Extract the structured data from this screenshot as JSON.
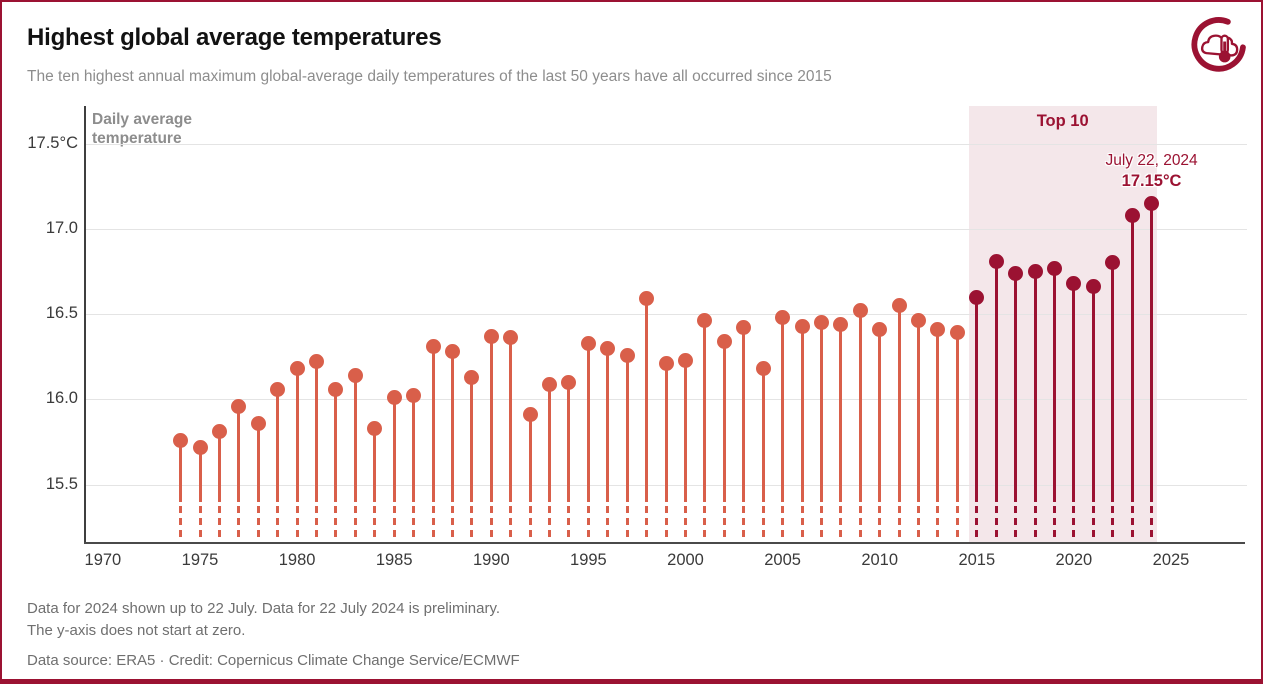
{
  "header": {
    "title": "Highest global average temperatures",
    "subtitle": "The ten highest annual maximum global-average daily temperatures of the last 50 years have all occurred since 2015"
  },
  "logo": {
    "name": "climate-pulse-logo",
    "color": "#9b1232"
  },
  "chart_data": {
    "type": "lollipop",
    "title": "Highest global average temperatures",
    "ylabel": "Daily average temperature",
    "y_unit": "°C",
    "ylim": [
      15.5,
      17.5
    ],
    "y_axis_starts_at_zero": false,
    "grid": true,
    "legend": "none",
    "y_ticks": [
      {
        "value": 17.5,
        "label": "17.5°C"
      },
      {
        "value": 17.0,
        "label": "17.0"
      },
      {
        "value": 16.5,
        "label": "16.5"
      },
      {
        "value": 16.0,
        "label": "16.0"
      },
      {
        "value": 15.5,
        "label": "15.5"
      }
    ],
    "x_ticks": [
      "1970",
      "1975",
      "1980",
      "1985",
      "1990",
      "1995",
      "2000",
      "2005",
      "2010",
      "2015",
      "2020",
      "2025"
    ],
    "top10_band": {
      "label": "Top 10",
      "from_year": 2015,
      "to_year": 2024,
      "fill": "#f4e7ea"
    },
    "annotation": {
      "date": "July 22, 2024",
      "value_label": "17.15°C",
      "year": 2024
    },
    "colors": {
      "default": "#d95f4a",
      "top10": "#9b1232"
    },
    "points": [
      {
        "year": 1974,
        "value": 15.76,
        "top10": false
      },
      {
        "year": 1975,
        "value": 15.72,
        "top10": false
      },
      {
        "year": 1976,
        "value": 15.81,
        "top10": false
      },
      {
        "year": 1977,
        "value": 15.96,
        "top10": false
      },
      {
        "year": 1978,
        "value": 15.86,
        "top10": false
      },
      {
        "year": 1979,
        "value": 16.06,
        "top10": false
      },
      {
        "year": 1980,
        "value": 16.18,
        "top10": false
      },
      {
        "year": 1981,
        "value": 16.22,
        "top10": false
      },
      {
        "year": 1982,
        "value": 16.06,
        "top10": false
      },
      {
        "year": 1983,
        "value": 16.14,
        "top10": false
      },
      {
        "year": 1984,
        "value": 15.83,
        "top10": false
      },
      {
        "year": 1985,
        "value": 16.01,
        "top10": false
      },
      {
        "year": 1986,
        "value": 16.02,
        "top10": false
      },
      {
        "year": 1987,
        "value": 16.31,
        "top10": false
      },
      {
        "year": 1988,
        "value": 16.28,
        "top10": false
      },
      {
        "year": 1989,
        "value": 16.13,
        "top10": false
      },
      {
        "year": 1990,
        "value": 16.37,
        "top10": false
      },
      {
        "year": 1991,
        "value": 16.36,
        "top10": false
      },
      {
        "year": 1992,
        "value": 15.91,
        "top10": false
      },
      {
        "year": 1993,
        "value": 16.09,
        "top10": false
      },
      {
        "year": 1994,
        "value": 16.1,
        "top10": false
      },
      {
        "year": 1995,
        "value": 16.33,
        "top10": false
      },
      {
        "year": 1996,
        "value": 16.3,
        "top10": false
      },
      {
        "year": 1997,
        "value": 16.26,
        "top10": false
      },
      {
        "year": 1998,
        "value": 16.59,
        "top10": false
      },
      {
        "year": 1999,
        "value": 16.21,
        "top10": false
      },
      {
        "year": 2000,
        "value": 16.23,
        "top10": false
      },
      {
        "year": 2001,
        "value": 16.46,
        "top10": false
      },
      {
        "year": 2002,
        "value": 16.34,
        "top10": false
      },
      {
        "year": 2003,
        "value": 16.42,
        "top10": false
      },
      {
        "year": 2004,
        "value": 16.18,
        "top10": false
      },
      {
        "year": 2005,
        "value": 16.48,
        "top10": false
      },
      {
        "year": 2006,
        "value": 16.43,
        "top10": false
      },
      {
        "year": 2007,
        "value": 16.45,
        "top10": false
      },
      {
        "year": 2008,
        "value": 16.44,
        "top10": false
      },
      {
        "year": 2009,
        "value": 16.52,
        "top10": false
      },
      {
        "year": 2010,
        "value": 16.41,
        "top10": false
      },
      {
        "year": 2011,
        "value": 16.55,
        "top10": false
      },
      {
        "year": 2012,
        "value": 16.46,
        "top10": false
      },
      {
        "year": 2013,
        "value": 16.41,
        "top10": false
      },
      {
        "year": 2014,
        "value": 16.39,
        "top10": false
      },
      {
        "year": 2015,
        "value": 16.6,
        "top10": true
      },
      {
        "year": 2016,
        "value": 16.81,
        "top10": true
      },
      {
        "year": 2017,
        "value": 16.74,
        "top10": true
      },
      {
        "year": 2018,
        "value": 16.75,
        "top10": true
      },
      {
        "year": 2019,
        "value": 16.77,
        "top10": true
      },
      {
        "year": 2020,
        "value": 16.68,
        "top10": true
      },
      {
        "year": 2021,
        "value": 16.66,
        "top10": true
      },
      {
        "year": 2022,
        "value": 16.8,
        "top10": true
      },
      {
        "year": 2023,
        "value": 17.08,
        "top10": true
      },
      {
        "year": 2024,
        "value": 17.15,
        "top10": true
      }
    ]
  },
  "footnotes": [
    "Data for 2024 shown up to 22 July. Data for 22 July 2024 is preliminary.",
    "The y-axis does not start at zero."
  ],
  "footer": {
    "source": "Data source: ERA5 · Credit: Copernicus Climate Change Service/ECMWF"
  }
}
